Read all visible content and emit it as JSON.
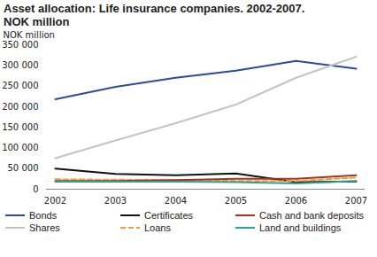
{
  "chart_data": {
    "type": "line",
    "title": "Asset allocation: Life insurance companies. 2002-2007.",
    "subtitle": "NOK million",
    "y_label": "NOK million",
    "categories": [
      "2002",
      "2003",
      "2004",
      "2005",
      "2006",
      "2007"
    ],
    "ylim": [
      0,
      350000
    ],
    "yticks": [
      0,
      {
        "value": 50000,
        "label": "50 000"
      },
      {
        "value": 100000,
        "label": "100 000"
      },
      {
        "value": 150000,
        "label": "150 000"
      },
      {
        "value": 200000,
        "label": "200 000"
      },
      {
        "value": 250000,
        "label": "250 000"
      },
      {
        "value": 300000,
        "label": "300 000"
      },
      {
        "value": 350000,
        "label": "350 000"
      }
    ],
    "grid": false,
    "legend": "bottom",
    "series": [
      {
        "name": "Bonds",
        "color": "#2d4a9b",
        "values": [
          218000,
          248000,
          270000,
          287000,
          311000,
          292000
        ]
      },
      {
        "name": "Shares",
        "color": "#c4c4c4",
        "values": [
          75000,
          118000,
          160000,
          205000,
          270000,
          321000
        ]
      },
      {
        "name": "Certificates",
        "color": "#111111",
        "values": [
          50000,
          37000,
          34000,
          38000,
          17000,
          19000
        ]
      },
      {
        "name": "Loans",
        "color": "#f0a030",
        "line_style": "dashed",
        "values": [
          24000,
          23000,
          22000,
          20000,
          20000,
          28000
        ]
      },
      {
        "name": "Cash and bank deposits",
        "color": "#a83222",
        "values": [
          20000,
          20000,
          22000,
          25000,
          25000,
          34000
        ]
      },
      {
        "name": "Land and buildings",
        "color": "#2aa29a",
        "values": [
          18000,
          18000,
          18000,
          17000,
          14000,
          20000
        ]
      }
    ]
  }
}
